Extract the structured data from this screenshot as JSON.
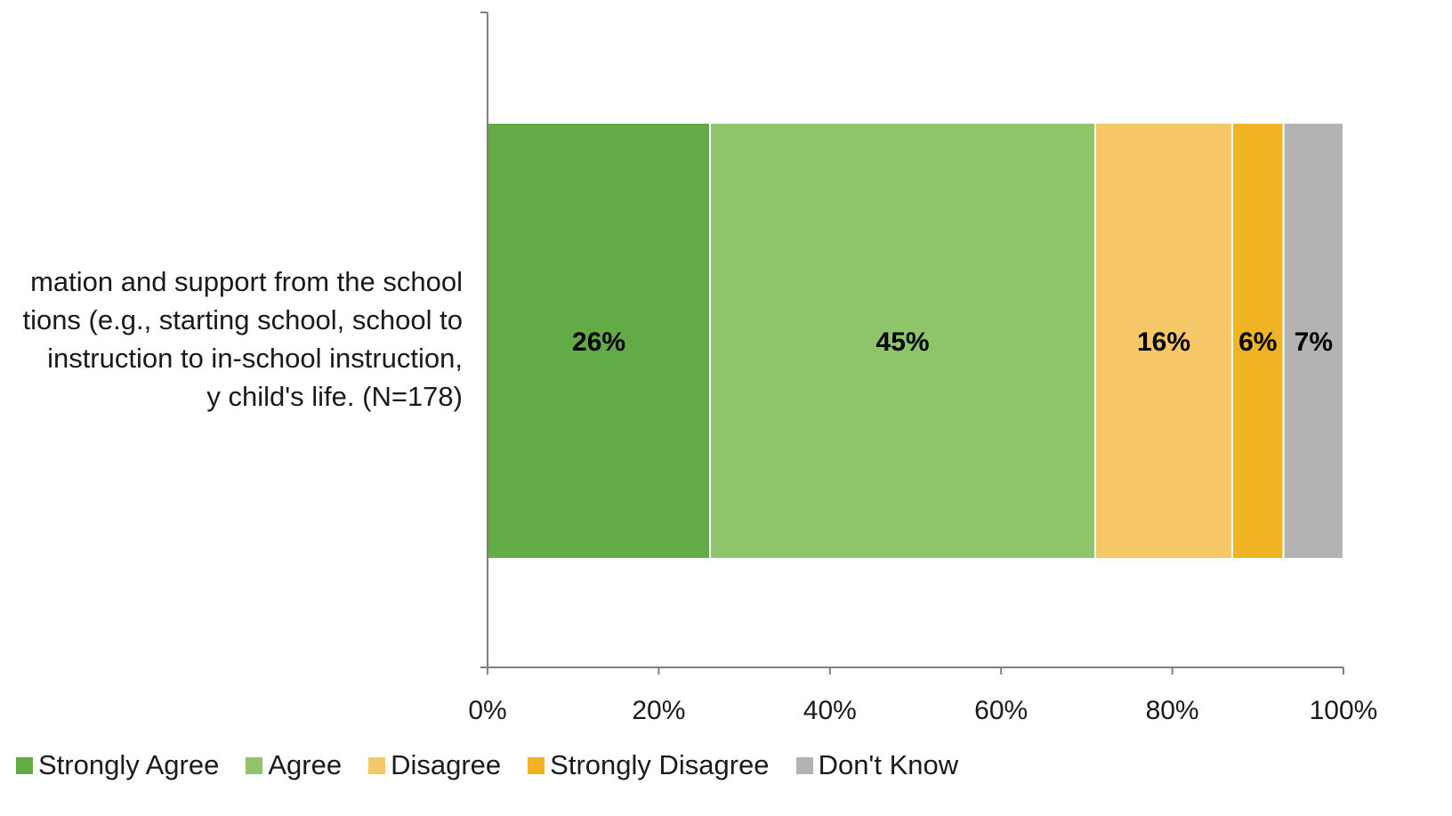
{
  "chart_data": {
    "type": "bar",
    "orientation": "horizontal",
    "stacked": true,
    "categories": [
      "…mation and support from the school\n…tions (e.g., starting school, school to\n… instruction to in-school instruction,\n…y child's life. (N=178)"
    ],
    "series": [
      {
        "name": "Strongly Agree",
        "values": [
          26
        ],
        "color": "#63ab47",
        "label": "26%"
      },
      {
        "name": "Agree",
        "values": [
          45
        ],
        "color": "#8ec46a",
        "label": "45%"
      },
      {
        "name": "Disagree",
        "values": [
          16
        ],
        "color": "#f5c767",
        "label": "16%"
      },
      {
        "name": "Strongly Disagree",
        "values": [
          6
        ],
        "color": "#f0b323",
        "label": "6%"
      },
      {
        "name": "Don't Know",
        "values": [
          7
        ],
        "color": "#b3b3b3",
        "label": "7%"
      }
    ],
    "xlim": [
      0,
      100
    ],
    "x_ticks": [
      "0%",
      "20%",
      "40%",
      "60%",
      "80%",
      "100%"
    ],
    "x_tick_values": [
      0,
      20,
      40,
      60,
      80,
      100
    ],
    "grid": false,
    "legend_position": "bottom"
  },
  "category_label": "mation and support from the school\ntions (e.g., starting school, school to\n instruction to in-school instruction,\ny child's life. (N=178)"
}
